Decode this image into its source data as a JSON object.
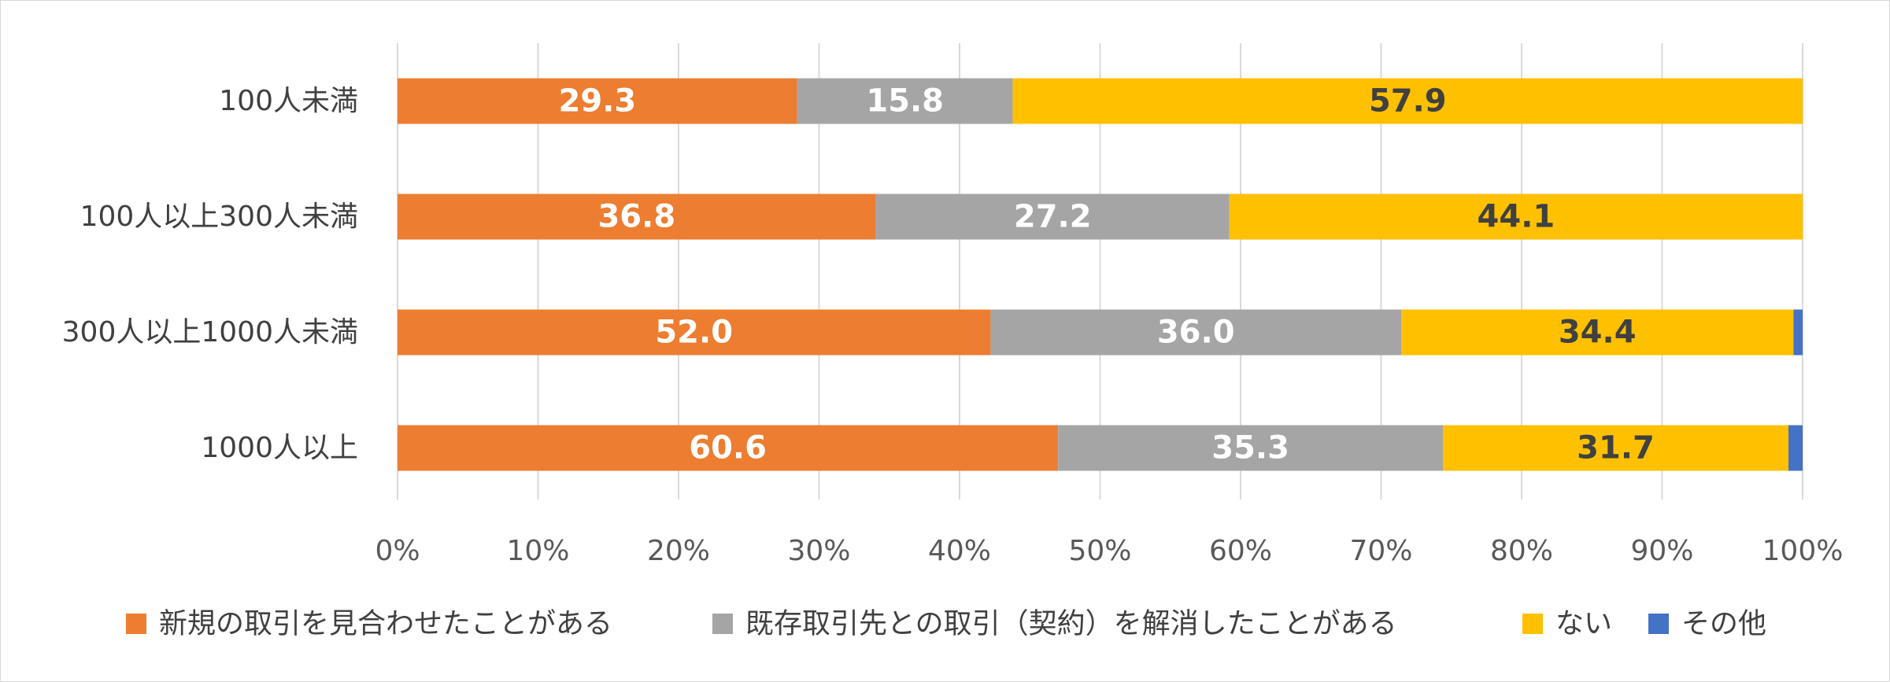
{
  "chart_data": {
    "type": "bar",
    "orientation": "horizontal",
    "stacked": "percent",
    "categories": [
      "100人未満",
      "100人以上300人未満",
      "300人以上1000人未満",
      "1000人以上"
    ],
    "series": [
      {
        "name": "新規の取引を見合わせたことがある",
        "color": "#ED7D31",
        "label_color": "#FFFFFF",
        "values": [
          29.3,
          36.8,
          52.0,
          60.6
        ]
      },
      {
        "name": "既存取引先との取引（契約）を解消したことがある",
        "color": "#A5A5A5",
        "label_color": "#FFFFFF",
        "values": [
          15.8,
          27.2,
          36.0,
          35.3
        ]
      },
      {
        "name": "ない",
        "color": "#FFC000",
        "label_color": "#404040",
        "values": [
          57.9,
          44.1,
          34.4,
          31.7
        ]
      },
      {
        "name": "その他",
        "color": "#4472C4",
        "label_color": "#FFFFFF",
        "values": [
          0.0,
          0.0,
          0.8,
          1.3
        ],
        "show_labels": false
      }
    ],
    "x_ticks": [
      "0%",
      "10%",
      "20%",
      "30%",
      "40%",
      "50%",
      "60%",
      "70%",
      "80%",
      "90%",
      "100%"
    ],
    "xlim": [
      0,
      100
    ],
    "grid": "vertical",
    "legend_position": "bottom"
  }
}
